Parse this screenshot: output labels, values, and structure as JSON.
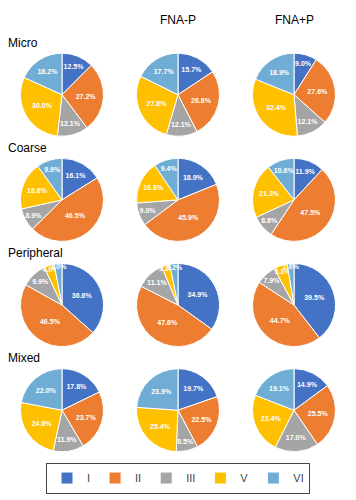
{
  "chart_data": [
    {
      "type": "pie",
      "subtitle": "Micro",
      "categories": [
        "I",
        "II",
        "III",
        "V",
        "VI"
      ],
      "values": [
        12.5,
        27.2,
        12.1,
        30.0,
        18.2
      ],
      "value_labels": [
        "12.5%",
        "27.2%",
        "12.1%",
        "30.0%",
        "18.2%"
      ],
      "colors": [
        "#4472C4",
        "#ED7D31",
        "#A5A5A5",
        "#FFC000",
        "#70ADD4"
      ],
      "data_labels": true,
      "legend": "bottom"
    },
    {
      "type": "pie",
      "title": "FNA-P",
      "categories": [
        "I",
        "II",
        "III",
        "V",
        "VI"
      ],
      "values": [
        15.7,
        26.8,
        12.1,
        27.8,
        17.7
      ],
      "value_labels": [
        "15.7%",
        "26.8%",
        "12.1%",
        "27.8%",
        "17.7%"
      ],
      "colors": [
        "#4472C4",
        "#ED7D31",
        "#A5A5A5",
        "#FFC000",
        "#70ADD4"
      ],
      "data_labels": true,
      "legend": "bottom"
    },
    {
      "type": "pie",
      "title": "FNA+P",
      "categories": [
        "I",
        "II",
        "III",
        "V",
        "VI"
      ],
      "values": [
        9.0,
        27.6,
        12.1,
        32.4,
        18.9
      ],
      "value_labels": [
        "9.0%",
        "27.6%",
        "12.1%",
        "32.4%",
        "18.9%"
      ],
      "colors": [
        "#4472C4",
        "#ED7D31",
        "#A5A5A5",
        "#FFC000",
        "#70ADD4"
      ],
      "data_labels": true,
      "legend": "bottom"
    },
    {
      "type": "pie",
      "subtitle": "Coarse",
      "categories": [
        "I",
        "II",
        "III",
        "V",
        "VI"
      ],
      "values": [
        16.1,
        46.5,
        8.9,
        18.6,
        9.9
      ],
      "value_labels": [
        "16.1%",
        "46.5%",
        "8.9%",
        "18.6%",
        "9.9%"
      ],
      "colors": [
        "#4472C4",
        "#ED7D31",
        "#A5A5A5",
        "#FFC000",
        "#70ADD4"
      ],
      "data_labels": true,
      "legend": "bottom"
    },
    {
      "type": "pie",
      "categories": [
        "I",
        "II",
        "III",
        "V",
        "VI"
      ],
      "values": [
        18.9,
        45.9,
        9.0,
        16.8,
        9.4
      ],
      "value_labels": [
        "18.9%",
        "45.9%",
        "9.0%",
        "16.8%",
        "9.4%"
      ],
      "colors": [
        "#4472C4",
        "#ED7D31",
        "#A5A5A5",
        "#FFC000",
        "#70ADD4"
      ],
      "data_labels": true,
      "legend": "bottom"
    },
    {
      "type": "pie",
      "categories": [
        "I",
        "II",
        "III",
        "V",
        "VI"
      ],
      "values": [
        11.9,
        47.5,
        8.8,
        21.3,
        10.6
      ],
      "value_labels": [
        "11.9%",
        "47.5%",
        "8.8%",
        "21.3%",
        "10.6%"
      ],
      "colors": [
        "#4472C4",
        "#ED7D31",
        "#A5A5A5",
        "#FFC000",
        "#70ADD4"
      ],
      "data_labels": true,
      "legend": "bottom"
    },
    {
      "type": "pie",
      "subtitle": "Peripheral",
      "categories": [
        "I",
        "II",
        "III",
        "V",
        "VI"
      ],
      "values": [
        36.6,
        46.5,
        9.9,
        4.0,
        3.0
      ],
      "value_labels": [
        "36.6%",
        "46.5%",
        "9.9%",
        "4.0%",
        "3.0%"
      ],
      "colors": [
        "#4472C4",
        "#ED7D31",
        "#A5A5A5",
        "#FFC000",
        "#70ADD4"
      ],
      "data_labels": true,
      "legend": "bottom"
    },
    {
      "type": "pie",
      "categories": [
        "I",
        "II",
        "III",
        "V",
        "VI"
      ],
      "values": [
        34.9,
        47.6,
        11.1,
        3.2,
        3.2
      ],
      "value_labels": [
        "34.9%",
        "47.6%",
        "11.1%",
        "3.2%",
        "3.2%"
      ],
      "colors": [
        "#4472C4",
        "#ED7D31",
        "#A5A5A5",
        "#FFC000",
        "#70ADD4"
      ],
      "data_labels": true,
      "legend": "bottom"
    },
    {
      "type": "pie",
      "categories": [
        "I",
        "II",
        "III",
        "V",
        "VI"
      ],
      "values": [
        39.5,
        44.7,
        7.9,
        5.3,
        2.6
      ],
      "value_labels": [
        "39.5%",
        "44.7%",
        "7.9%",
        "5.3%",
        "2.6%"
      ],
      "colors": [
        "#4472C4",
        "#ED7D31",
        "#A5A5A5",
        "#FFC000",
        "#70ADD4"
      ],
      "data_labels": true,
      "legend": "bottom"
    },
    {
      "type": "pie",
      "subtitle": "Mixed",
      "categories": [
        "I",
        "II",
        "III",
        "V",
        "VI"
      ],
      "values": [
        17.8,
        23.7,
        11.9,
        24.6,
        22.0
      ],
      "value_labels": [
        "17.8%",
        "23.7%",
        "11.9%",
        "24.6%",
        "22.0%"
      ],
      "colors": [
        "#4472C4",
        "#ED7D31",
        "#A5A5A5",
        "#FFC000",
        "#70ADD4"
      ],
      "data_labels": true,
      "legend": "bottom"
    },
    {
      "type": "pie",
      "categories": [
        "I",
        "II",
        "III",
        "V",
        "VI"
      ],
      "values": [
        19.7,
        22.5,
        8.5,
        25.4,
        23.9
      ],
      "value_labels": [
        "19.7%",
        "22.5%",
        "8.5%",
        "25.4%",
        "23.9%"
      ],
      "colors": [
        "#4472C4",
        "#ED7D31",
        "#A5A5A5",
        "#FFC000",
        "#70ADD4"
      ],
      "data_labels": true,
      "legend": "bottom"
    },
    {
      "type": "pie",
      "categories": [
        "I",
        "II",
        "III",
        "V",
        "VI"
      ],
      "values": [
        14.9,
        25.5,
        17.0,
        23.4,
        19.1
      ],
      "value_labels": [
        "14.9%",
        "25.5%",
        "17.0%",
        "23.4%",
        "19.1%"
      ],
      "colors": [
        "#4472C4",
        "#ED7D31",
        "#A5A5A5",
        "#FFC000",
        "#70ADD4"
      ],
      "data_labels": true,
      "legend": "bottom"
    }
  ]
}
